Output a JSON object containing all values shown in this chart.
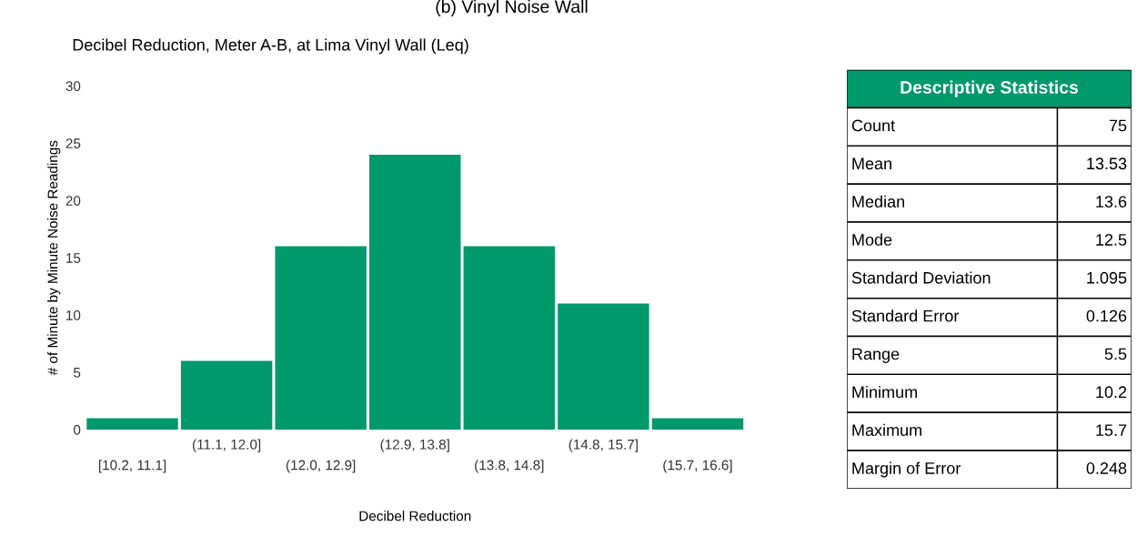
{
  "chart_data": [
    {
      "type": "bar",
      "title": "Decibel Reduction, Meter A-B, at Lima Vinyl Wall (Leq)",
      "xlabel": "Decibel Reduction",
      "ylabel": "# of Minute by Minute Noise Readings",
      "categories": [
        "[10.2, 11.1]",
        "(11.1, 12.0]",
        "(12.0, 12.9]",
        "(12.9, 13.8]",
        "(13.8, 14.8]",
        "(14.8, 15.7]",
        "(15.7, 16.6]"
      ],
      "values": [
        1,
        6,
        16,
        24,
        16,
        11,
        1
      ],
      "color": "#00996b",
      "ylim": [
        0,
        30
      ],
      "yticks": [
        0,
        5,
        10,
        15,
        20,
        25,
        30
      ],
      "grid": false,
      "annotations": [
        "(b) Vinyl Noise Wall"
      ]
    },
    {
      "type": "other",
      "title": "Descriptive Statistics",
      "categories": [
        "Count",
        "Mean",
        "Median",
        "Mode",
        "Standard Deviation",
        "Standard Error",
        "Range",
        "Minimum",
        "Maximum",
        "Margin of Error"
      ],
      "values": [
        75,
        13.53,
        13.6,
        12.5,
        1.095,
        0.126,
        5.5,
        10.2,
        15.7,
        0.248
      ],
      "data_labels": true
    }
  ]
}
